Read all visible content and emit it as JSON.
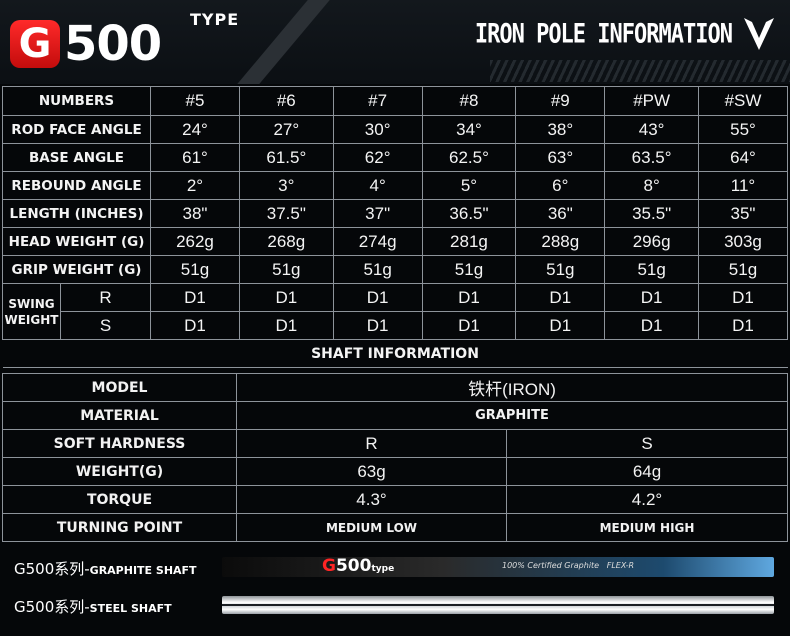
{
  "header": {
    "logo_letter": "G",
    "logo_number": "500",
    "logo_type": "TYPE",
    "title": "IRON POLE INFORMATION",
    "brand_icon": "v-chevron-logo-icon"
  },
  "spec_table": {
    "columns": [
      "NUMBERS",
      "#5",
      "#6",
      "#7",
      "#8",
      "#9",
      "#PW",
      "#SW"
    ],
    "rows": [
      {
        "label": "ROD FACE ANGLE",
        "values": [
          "24°",
          "27°",
          "30°",
          "34°",
          "38°",
          "43°",
          "55°"
        ]
      },
      {
        "label": "BASE ANGLE",
        "values": [
          "61°",
          "61.5°",
          "62°",
          "62.5°",
          "63°",
          "63.5°",
          "64°"
        ]
      },
      {
        "label": "REBOUND ANGLE",
        "values": [
          "2°",
          "3°",
          "4°",
          "5°",
          "6°",
          "8°",
          "11°"
        ]
      },
      {
        "label": "LENGTH (INCHES)",
        "values": [
          "38\"",
          "37.5\"",
          "37\"",
          "36.5\"",
          "36\"",
          "35.5\"",
          "35\""
        ]
      },
      {
        "label": "HEAD WEIGHT (G)",
        "values": [
          "262g",
          "268g",
          "274g",
          "281g",
          "288g",
          "296g",
          "303g"
        ]
      },
      {
        "label": "GRIP WEIGHT (G)",
        "values": [
          "51g",
          "51g",
          "51g",
          "51g",
          "51g",
          "51g",
          "51g"
        ]
      }
    ],
    "swing_weight": {
      "label_line1": "SWING",
      "label_line2": "WEIGHT",
      "rows": [
        {
          "flex": "R",
          "values": [
            "D1",
            "D1",
            "D1",
            "D1",
            "D1",
            "D1",
            "D1"
          ]
        },
        {
          "flex": "S",
          "values": [
            "D1",
            "D1",
            "D1",
            "D1",
            "D1",
            "D1",
            "D1"
          ]
        }
      ]
    }
  },
  "shaft_info": {
    "title": "SHAFT INFORMATION",
    "model_label": "MODEL",
    "model_value": "铁杆(IRON)",
    "material_label": "MATERIAL",
    "material_value": "GRAPHITE",
    "rows": [
      {
        "label": "SOFT HARDNESS",
        "r": "R",
        "s": "S"
      },
      {
        "label": "WEIGHT(G)",
        "r": "63g",
        "s": "64g"
      },
      {
        "label": "TORQUE",
        "r": "4.3°",
        "s": "4.2°"
      },
      {
        "label": "TURNING POINT",
        "r": "MEDIUM LOW",
        "s": "MEDIUM HIGH"
      }
    ]
  },
  "shafts": {
    "graphite": {
      "series": "G500系列-",
      "name": "GRAPHITE SHAFT",
      "brand_g": "G",
      "brand_rest": "500",
      "brand_type": "type",
      "cert_text": "100% Certified Graphite",
      "flex_text": "FLEX-R"
    },
    "steel": {
      "series": "G500系列-",
      "name": "STEEL SHAFT"
    }
  }
}
